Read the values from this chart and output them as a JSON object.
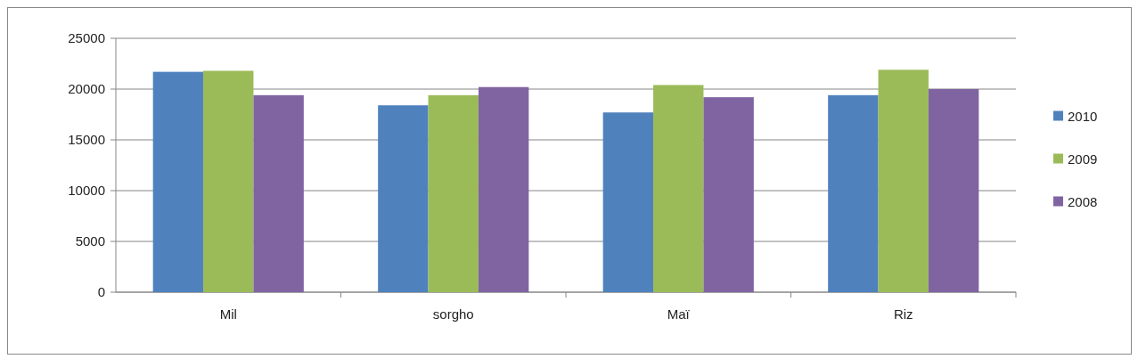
{
  "chart_data": {
    "type": "bar",
    "categories": [
      "Mil",
      "sorgho",
      "Maï",
      "Riz"
    ],
    "series": [
      {
        "name": "2010",
        "color": "#4f81bd",
        "values": [
          21700,
          18400,
          17700,
          19400
        ]
      },
      {
        "name": "2009",
        "color": "#9bbb59",
        "values": [
          21800,
          19400,
          20400,
          21900
        ]
      },
      {
        "name": "2008",
        "color": "#8064a2",
        "values": [
          19400,
          20200,
          19200,
          20000
        ]
      }
    ],
    "ylim": [
      0,
      25000
    ],
    "yticks": [
      0,
      5000,
      10000,
      15000,
      20000,
      25000
    ],
    "grid": "y",
    "legend": "right"
  }
}
